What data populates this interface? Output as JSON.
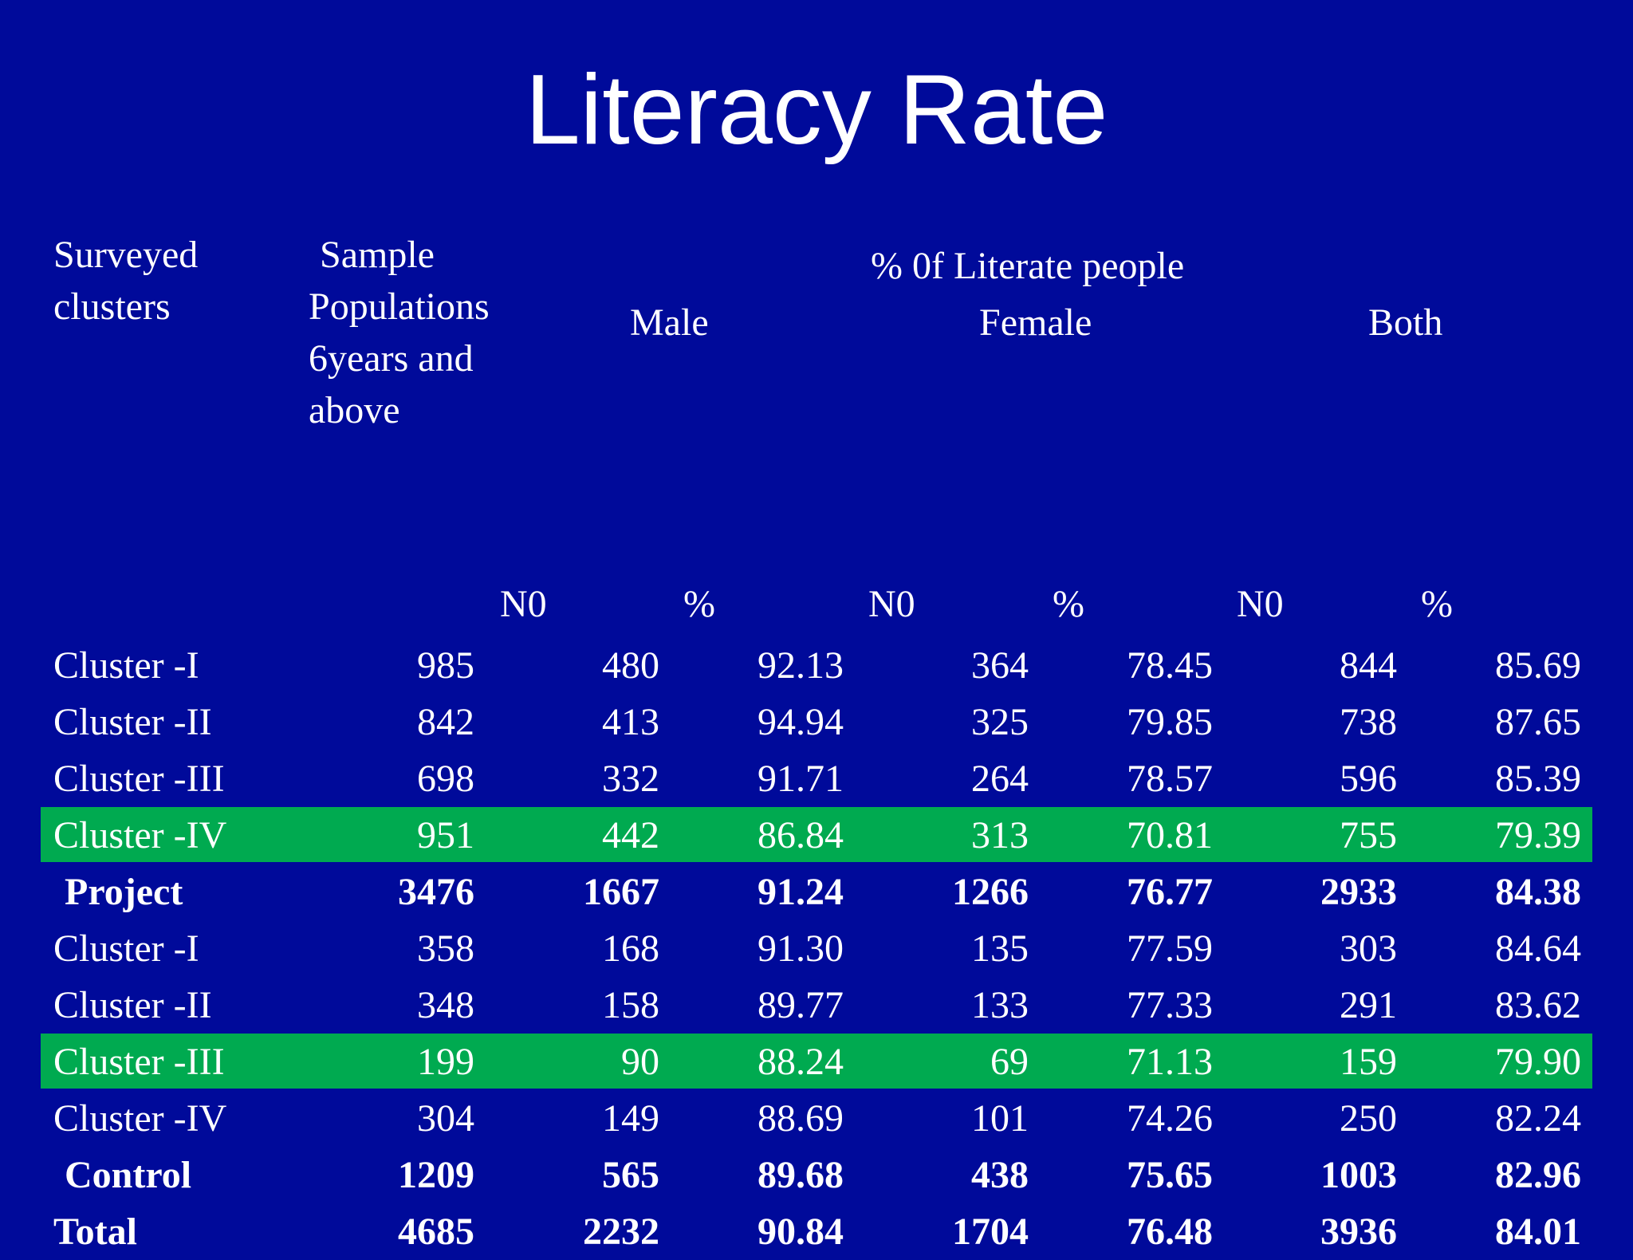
{
  "title": "Literacy Rate",
  "header": {
    "surveyed": "Surveyed clusters",
    "sample_line1": "Sample",
    "sample_rest": "Populations 6years and above",
    "group_title": "% 0f Literate people",
    "male": "Male",
    "female": "Female",
    "both": "Both"
  },
  "subheaders": {
    "male_no": "N0",
    "male_pct": "%",
    "female_no": "N0",
    "female_pct": "%",
    "both_no": "N0",
    "both_pct": "%"
  },
  "rows": [
    {
      "label": "Cluster -I",
      "values": [
        "985",
        "480",
        "92.13",
        "364",
        "78.45",
        "844",
        "85.69"
      ]
    },
    {
      "label": "Cluster -II",
      "values": [
        "842",
        "413",
        "94.94",
        "325",
        "79.85",
        "738",
        "87.65"
      ]
    },
    {
      "label": "Cluster -III",
      "values": [
        "698",
        "332",
        "91.71",
        "264",
        "78.57",
        "596",
        "85.39"
      ]
    },
    {
      "label": "Cluster -IV",
      "values": [
        "951",
        "442",
        "86.84",
        "313",
        "70.81",
        "755",
        "79.39"
      ]
    },
    {
      "label": "Project",
      "values": [
        "3476",
        "1667",
        "91.24",
        "1266",
        "76.77",
        "2933",
        "84.38"
      ]
    },
    {
      "label": "Cluster -I",
      "values": [
        "358",
        "168",
        "91.30",
        "135",
        "77.59",
        "303",
        "84.64"
      ]
    },
    {
      "label": "Cluster -II",
      "values": [
        "348",
        "158",
        "89.77",
        "133",
        "77.33",
        "291",
        "83.62"
      ]
    },
    {
      "label": "Cluster -III",
      "values": [
        "199",
        "90",
        "88.24",
        "69",
        "71.13",
        "159",
        "79.90"
      ]
    },
    {
      "label": "Cluster -IV",
      "values": [
        "304",
        "149",
        "88.69",
        "101",
        "74.26",
        "250",
        "82.24"
      ]
    },
    {
      "label": "Control",
      "values": [
        "1209",
        "565",
        "89.68",
        "438",
        "75.65",
        "1003",
        "82.96"
      ]
    },
    {
      "label": "Total",
      "values": [
        "4685",
        "2232",
        "90.84",
        "1704",
        "76.48",
        "3936",
        "84.01"
      ]
    }
  ],
  "colors": {
    "background": "#000A9A",
    "highlight": "#00AA50",
    "text": "#FFFFFF"
  }
}
